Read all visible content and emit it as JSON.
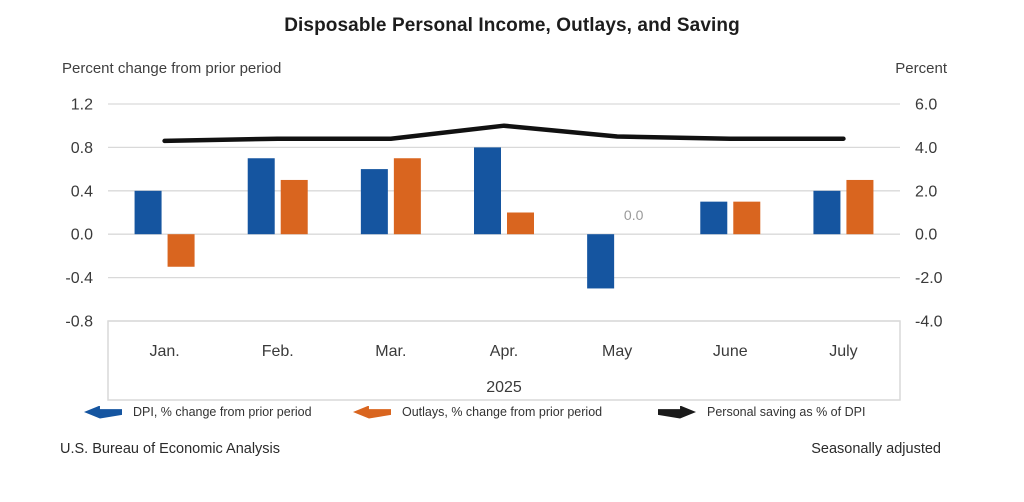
{
  "title": "Disposable Personal Income, Outlays, and Saving",
  "axis_caption_left": "Percent change from prior period",
  "axis_caption_right": "Percent",
  "footer": {
    "left": "U.S. Bureau of Economic Analysis",
    "right": "Seasonally adjusted"
  },
  "legend": [
    {
      "label": "DPI, % change from prior period",
      "color": "#1555a0",
      "direction": "left"
    },
    {
      "label": "Outlays, % change from prior period",
      "color": "#d9651f",
      "direction": "left"
    },
    {
      "label": "Personal saving as % of DPI",
      "color": "#1a1a1a",
      "direction": "right"
    }
  ],
  "chart_data": {
    "type": "bar",
    "subtype": "grouped bars with overlaid line",
    "categories": [
      "Jan.",
      "Feb.",
      "Mar.",
      "Apr.",
      "May",
      "June",
      "July"
    ],
    "x_group_label": "2025",
    "series": [
      {
        "name": "DPI, % change from prior period",
        "type": "bar",
        "axis": "left",
        "color": "#1555a0",
        "values": [
          0.4,
          0.7,
          0.6,
          0.8,
          -0.5,
          0.3,
          0.4
        ]
      },
      {
        "name": "Outlays, % change from prior period",
        "type": "bar",
        "axis": "left",
        "color": "#d9651f",
        "values": [
          -0.3,
          0.5,
          0.7,
          0.2,
          0.0,
          0.3,
          0.5
        ]
      },
      {
        "name": "Personal saving as % of DPI",
        "type": "line",
        "axis": "right",
        "color": "#1a1a1a",
        "values": [
          4.3,
          4.4,
          4.4,
          5.0,
          4.5,
          4.4,
          4.4
        ]
      }
    ],
    "left_axis": {
      "label": "Percent change from prior period",
      "ticks": [
        1.2,
        0.8,
        0.4,
        0.0,
        -0.4,
        -0.8
      ],
      "range": [
        -0.8,
        1.2
      ]
    },
    "right_axis": {
      "label": "Percent",
      "ticks": [
        6.0,
        4.0,
        2.0,
        0.0,
        -2.0,
        -4.0
      ],
      "range": [
        -4.0,
        6.0
      ]
    },
    "annotations": [
      {
        "text": "0.0",
        "series": "Outlays, % change from prior period",
        "category": "May"
      }
    ],
    "grid": true,
    "legend_position": "bottom"
  },
  "colors": {
    "grid": "#d9d9d9",
    "box_border": "#d9d9d9",
    "tick_text": "#3a3a3a",
    "month_text": "#3a3a3a",
    "annotation_text": "#9a9a9a",
    "line": "#111111"
  }
}
